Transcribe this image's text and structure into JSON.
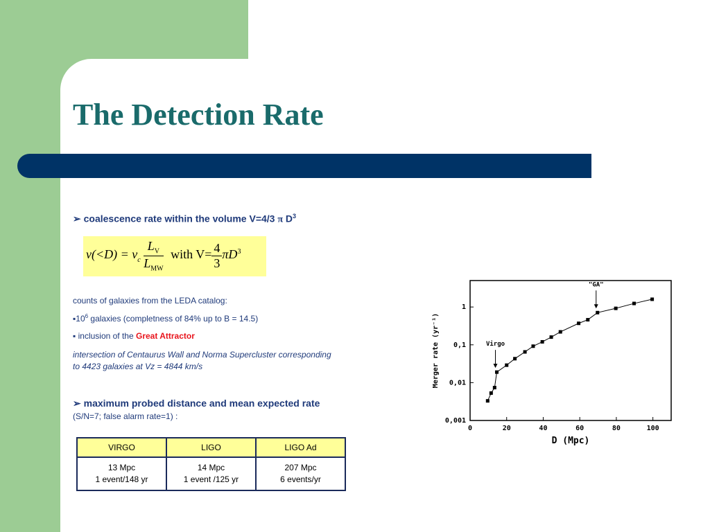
{
  "title": "The Detection Rate",
  "point1": {
    "text": "coalescence rate within the volume V=4/3 ",
    "pi": "π",
    "d": " D",
    "sup": "3"
  },
  "formula": {
    "lhs": "ν(<D) = ν",
    "lhs_sub": "c",
    "num": "L",
    "num_sub": "V",
    "den": "L",
    "den_sub": "MW",
    "with": "with V=",
    "frac_num": "4",
    "frac_den": "3",
    "rest": "πD",
    "rest_sup": "3"
  },
  "counts": "counts of galaxies from the LEDA catalog:",
  "bullet1": {
    "base": "10",
    "sup": "6",
    "text": " galaxies (completness of 84% up to B = 14.5)"
  },
  "bullet2": {
    "text": " inclusion of the ",
    "highlight": "Great Attractor"
  },
  "note": [
    "intersection of Centaurus Wall  and Norma Supercluster corresponding",
    "to 4423 galaxies at  Vz = 4844 km/s"
  ],
  "point2": {
    "text": "maximum probed distance and mean expected rate",
    "sub": "(S/N=7; false alarm rate=1) :"
  },
  "table": {
    "header": [
      "VIRGO",
      "LIGO",
      "LIGO Ad"
    ],
    "rows": [
      [
        [
          "13 Mpc",
          "1 event/148 yr"
        ],
        [
          "14 Mpc",
          "1 event /125 yr"
        ],
        [
          "207 Mpc",
          "6 events/yr"
        ]
      ]
    ]
  },
  "chart_data": {
    "type": "line",
    "xlabel": "D (Mpc)",
    "ylabel": "Merger rate (yr⁻¹)",
    "x": [
      9.6,
      11.5,
      13.4,
      14.6,
      20,
      24.5,
      30,
      34.5,
      39.5,
      44.4,
      49.4,
      59.4,
      64.4,
      69.7,
      79.7,
      89.7,
      99.6
    ],
    "values": [
      0.0033,
      0.0053,
      0.0074,
      0.019,
      0.029,
      0.043,
      0.065,
      0.092,
      0.12,
      0.16,
      0.22,
      0.37,
      0.46,
      0.71,
      0.92,
      1.24,
      1.6
    ],
    "color": "#000000",
    "xlim": [
      0,
      110
    ],
    "ylim": [
      0.001,
      5
    ],
    "log_y": true,
    "xticks": [
      0,
      20,
      40,
      60,
      80,
      100
    ],
    "yticks": [
      {
        "value": 0.001,
        "label": "0,001"
      },
      {
        "value": 0.01,
        "label": "0,01"
      },
      {
        "value": 0.1,
        "label": "0,1"
      },
      1
    ],
    "annotations": [
      {
        "text": "Virgo",
        "x": 14.6,
        "y": 0.019
      },
      {
        "text": "\"GA\"",
        "x": 69.7,
        "y": 0.71
      }
    ]
  }
}
